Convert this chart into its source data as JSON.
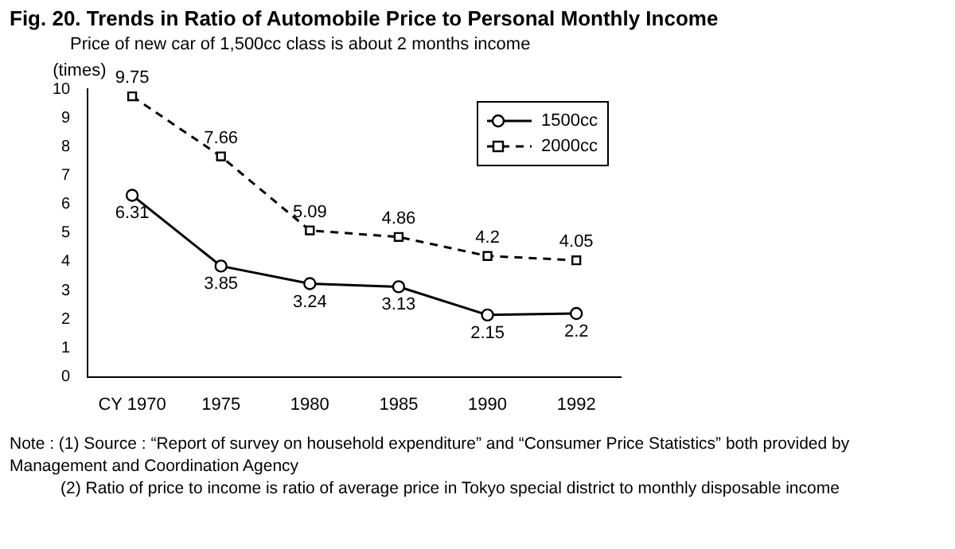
{
  "chart_data": {
    "type": "line",
    "title": "Fig. 20. Trends in Ratio of Automobile Price to Personal Monthly Income",
    "subtitle": "Price of new car of 1,500cc class is about 2 months income",
    "ylabel": "(times)",
    "categories": [
      "CY 1970",
      "1975",
      "1980",
      "1985",
      "1990",
      "1992"
    ],
    "series": [
      {
        "name": "1500cc",
        "color": "#000000",
        "values": [
          6.31,
          3.85,
          3.24,
          3.13,
          2.15,
          2.2
        ],
        "marker": "circle",
        "line_style": "solid"
      },
      {
        "name": "2000cc",
        "color": "#000000",
        "values": [
          9.75,
          7.66,
          5.09,
          4.86,
          4.2,
          4.05
        ],
        "marker": "square",
        "line_style": "dashed"
      }
    ],
    "ylim": [
      0,
      10
    ],
    "yticks": [
      0,
      1,
      2,
      3,
      4,
      5,
      6,
      7,
      8,
      9,
      10
    ],
    "grid": false,
    "legend": "top right",
    "data_labels": true,
    "annotations": [
      "Note : (1) Source : “Report of survey on household expenditure” and “Consumer Price Statistics” both provided by Management and Coordination Agency",
      "(2) Ratio of price to income is ratio of average price in Tokyo special district to monthly disposable income"
    ]
  }
}
